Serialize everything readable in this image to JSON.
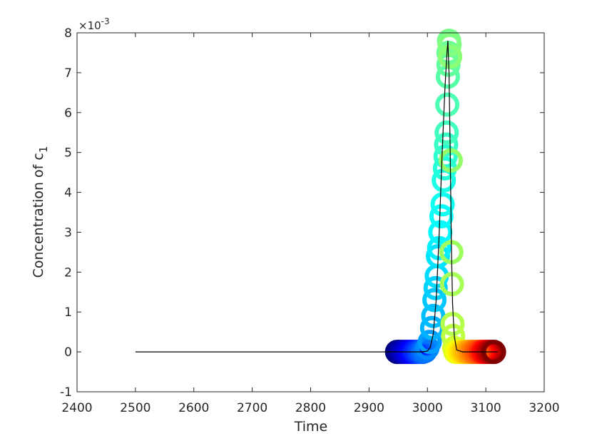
{
  "chart_data": {
    "type": "scatter",
    "title": "",
    "xlabel": "Time",
    "ylabel": "Concentration  of c",
    "ylabel_subscript": "1",
    "y_exponent_label": "×10",
    "y_exponent_power": "-3",
    "xlim": [
      2400,
      3200
    ],
    "ylim": [
      -1,
      8
    ],
    "xticks": [
      2400,
      2500,
      2600,
      2700,
      2800,
      2900,
      3000,
      3100,
      3200
    ],
    "yticks": [
      -1,
      0,
      1,
      2,
      3,
      4,
      5,
      6,
      7,
      8
    ],
    "grid": false,
    "legend": "none",
    "colormap": "jet",
    "line_color": "#000000",
    "line_series": {
      "x": [
        2500,
        2600,
        2700,
        2800,
        2900,
        2990,
        3000,
        3005,
        3010,
        3015,
        3020,
        3025,
        3030,
        3033,
        3035,
        3037,
        3039,
        3041,
        3043,
        3046,
        3050,
        3060,
        3120
      ],
      "y": [
        0,
        0,
        0,
        0,
        0,
        0,
        0.02,
        0.12,
        0.45,
        1.3,
        2.9,
        4.9,
        6.6,
        7.4,
        7.8,
        7.0,
        5.0,
        2.7,
        1.2,
        0.4,
        0.05,
        0,
        0
      ]
    },
    "scatter_series": {
      "x": [
        2948,
        2952,
        2956,
        2960,
        2964,
        2968,
        2972,
        2976,
        2980,
        2984,
        2988,
        2992,
        2996,
        3000,
        3004,
        3008,
        3010,
        3012,
        3014,
        3016,
        3018,
        3020,
        3022,
        3024,
        3026,
        3028,
        3030,
        3031,
        3032,
        3033,
        3034,
        3035,
        3036,
        3036,
        3037,
        3038,
        3039,
        3040,
        3041,
        3042,
        3043,
        3044,
        3046,
        3048,
        3052,
        3056,
        3060,
        3064,
        3068,
        3072,
        3076,
        3080,
        3084,
        3088,
        3092,
        3096,
        3100,
        3104,
        3108,
        3112,
        3114
      ],
      "y": [
        0,
        0,
        0,
        0,
        0,
        0,
        0,
        0,
        0,
        0,
        0,
        0,
        0.02,
        0.1,
        0.25,
        0.6,
        0.9,
        1.3,
        1.6,
        1.9,
        2.4,
        2.6,
        3.0,
        3.4,
        3.7,
        4.3,
        4.6,
        4.9,
        5.2,
        5.5,
        6.2,
        6.9,
        7.2,
        7.5,
        7.8,
        7.7,
        7.4,
        4.8,
        2.5,
        1.7,
        0.7,
        0.4,
        0.1,
        0,
        0,
        0,
        0,
        0,
        0,
        0,
        0,
        0,
        0,
        0,
        0,
        0,
        0,
        0,
        0,
        0,
        0
      ],
      "color_value": [
        0.0,
        0.02,
        0.04,
        0.06,
        0.08,
        0.1,
        0.12,
        0.14,
        0.16,
        0.18,
        0.2,
        0.22,
        0.24,
        0.26,
        0.28,
        0.3,
        0.31,
        0.32,
        0.33,
        0.34,
        0.35,
        0.36,
        0.37,
        0.38,
        0.39,
        0.4,
        0.41,
        0.42,
        0.43,
        0.44,
        0.45,
        0.46,
        0.47,
        0.48,
        0.49,
        0.5,
        0.51,
        0.52,
        0.53,
        0.54,
        0.55,
        0.56,
        0.58,
        0.6,
        0.62,
        0.64,
        0.66,
        0.68,
        0.7,
        0.72,
        0.74,
        0.76,
        0.78,
        0.8,
        0.83,
        0.86,
        0.89,
        0.92,
        0.95,
        0.98,
        1.0
      ]
    }
  }
}
